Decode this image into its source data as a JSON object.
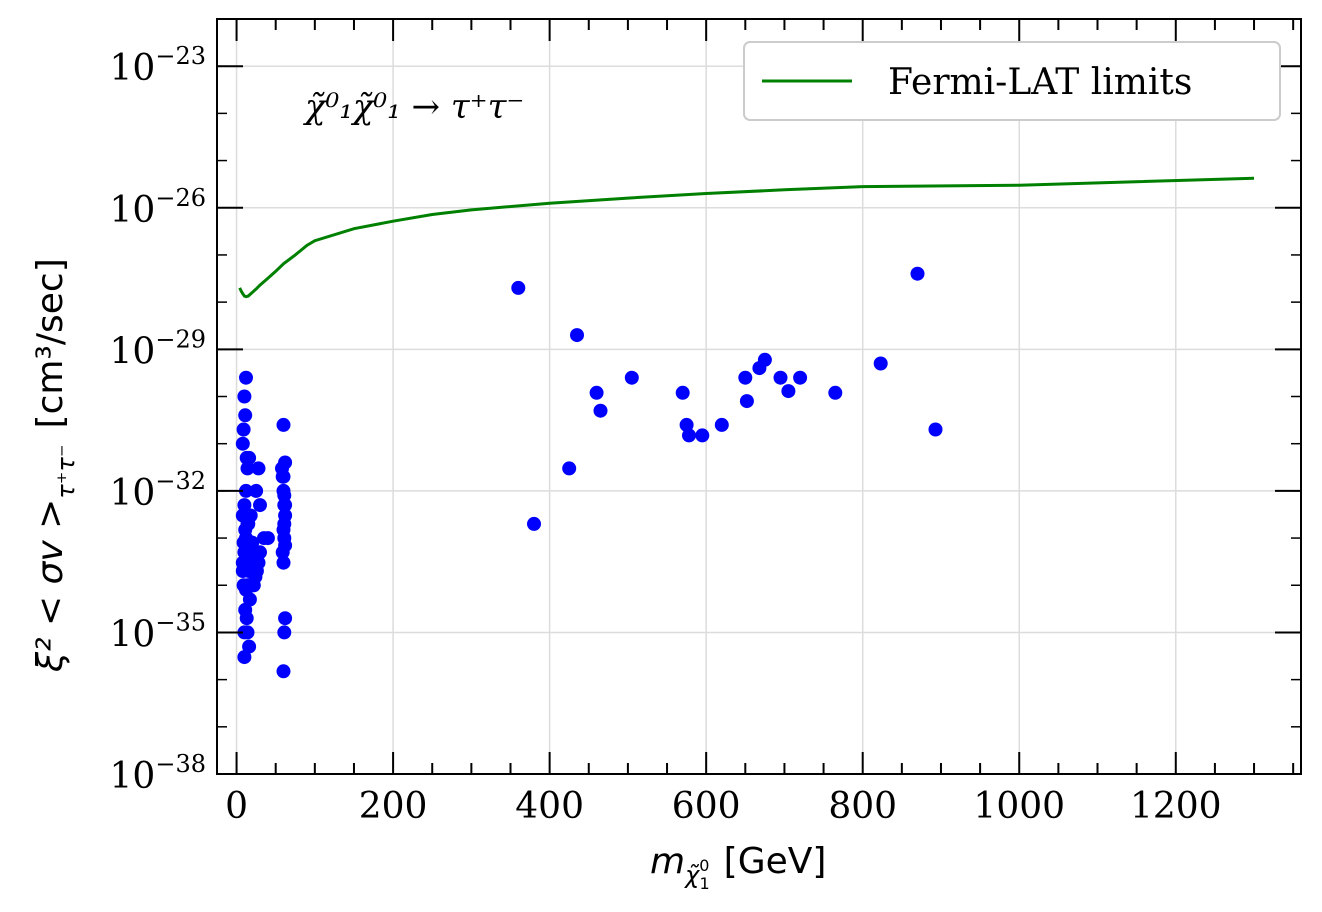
{
  "chart_data": {
    "type": "scatter",
    "title": "",
    "xlabel": "m",
    "xlabel_sub": "χ̃",
    "xlabel_sub_sup": "0",
    "xlabel_sub_sub": "1",
    "xlabel_unit": "[GeV]",
    "ylabel": "ξ² < σv >",
    "ylabel_sub": "τ⁺τ⁻",
    "ylabel_unit": "[cm³/sec]",
    "yscale": "log",
    "xlim": [
      -25,
      1360
    ],
    "ylim": [
      1e-38,
      1e-22
    ],
    "xticks": [
      0,
      200,
      400,
      600,
      800,
      1000,
      1200
    ],
    "xtick_labels": [
      "0",
      "200",
      "400",
      "600",
      "800",
      "1000",
      "1200"
    ],
    "ytick_exponents": [
      -23,
      -26,
      -29,
      -32,
      -35,
      -38
    ],
    "ytick_base": "10",
    "ytick_sign": "−",
    "grid": true,
    "legend_position": "top-right",
    "annotation": "χ̃⁰₁χ̃⁰₁ → τ⁺τ⁻",
    "colors": {
      "line": "#008000",
      "points": "#0000ff",
      "grid": "#dcdcdc"
    },
    "series": [
      {
        "name": "Fermi-LAT limits",
        "kind": "line",
        "x": [
          4,
          6,
          8,
          10,
          12,
          15,
          20,
          25,
          30,
          40,
          50,
          60,
          75,
          90,
          100,
          150,
          200,
          250,
          300,
          400,
          500,
          600,
          700,
          800,
          1000,
          1300
        ],
        "y": [
          2e-28,
          1.7e-28,
          1.5e-28,
          1.35e-28,
          1.3e-28,
          1.35e-28,
          1.6e-28,
          1.9e-28,
          2.3e-28,
          3.2e-28,
          4.5e-28,
          6.5e-28,
          1e-27,
          1.6e-27,
          2e-27,
          3.6e-27,
          5.2e-27,
          7.2e-27,
          9e-27,
          1.25e-26,
          1.6e-26,
          2e-26,
          2.4e-26,
          2.8e-26,
          3e-26,
          4.2e-26
        ]
      },
      {
        "name": "",
        "kind": "scatter",
        "x": [
          360,
          435,
          460,
          465,
          505,
          380,
          425,
          570,
          575,
          578,
          595,
          620,
          650,
          652,
          668,
          675,
          695,
          705,
          720,
          765,
          823,
          870,
          893,
          8,
          9,
          10,
          11,
          12,
          13,
          14,
          8,
          10,
          12,
          15,
          9,
          11,
          13,
          16,
          8,
          10,
          12,
          14,
          18,
          20,
          22,
          25,
          28,
          30,
          35,
          40,
          8,
          10,
          12,
          14,
          16,
          18,
          20,
          22,
          24,
          26,
          28,
          30,
          9,
          11,
          14,
          17,
          20,
          23,
          26,
          10,
          13,
          16,
          12,
          15,
          10,
          58,
          59,
          60,
          61,
          62,
          60,
          61,
          62,
          59,
          60,
          61,
          62,
          60,
          61,
          62,
          60,
          61,
          62,
          60
        ],
        "y": [
          2e-28,
          2e-29,
          1.2e-30,
          5e-31,
          2.5e-30,
          2e-33,
          3e-32,
          1.2e-30,
          2.5e-31,
          1.5e-31,
          1.5e-31,
          2.5e-31,
          2.5e-30,
          8e-31,
          4e-30,
          6e-30,
          2.5e-30,
          1.3e-30,
          2.5e-30,
          1.2e-30,
          5e-30,
          4e-28,
          2e-31,
          1e-31,
          2e-31,
          1e-30,
          4e-31,
          2.5e-30,
          5e-32,
          3e-32,
          3e-33,
          5e-33,
          1e-32,
          2e-33,
          8e-34,
          1.5e-33,
          3e-33,
          5e-32,
          3e-34,
          5e-34,
          1e-33,
          2e-33,
          3e-33,
          8e-34,
          3e-34,
          1e-32,
          3e-32,
          5e-33,
          1e-33,
          1e-33,
          2e-34,
          3e-34,
          5e-34,
          1e-34,
          2e-34,
          3e-34,
          5e-34,
          1e-34,
          1.5e-34,
          2e-34,
          3e-34,
          5e-34,
          1e-34,
          3e-35,
          1e-35,
          5e-35,
          1e-34,
          2e-34,
          3e-34,
          1e-35,
          2e-35,
          5e-36,
          8e-35,
          3e-34,
          3e-36,
          3e-32,
          2e-32,
          1e-32,
          5e-33,
          3e-33,
          1.5e-33,
          1e-33,
          7e-34,
          5e-34,
          3e-34,
          2e-33,
          5e-33,
          2.5e-31,
          1e-35,
          2e-35,
          1.5e-36,
          8e-33,
          4e-32,
          2e-32
        ]
      }
    ]
  }
}
